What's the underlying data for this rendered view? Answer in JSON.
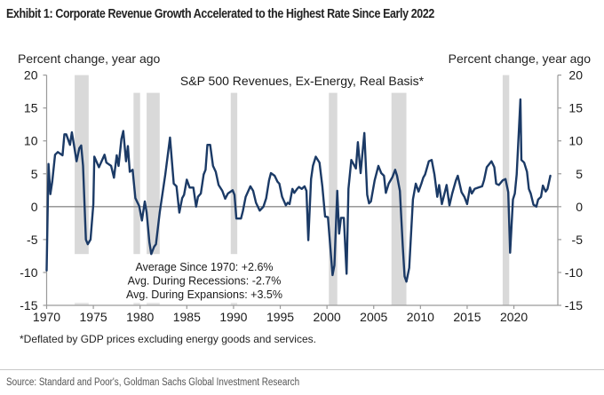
{
  "header": {
    "exhibit_title": "Exhibit 1: Corporate Revenue Growth Accelerated to the Highest Rate Since Early 2022"
  },
  "chart_data": {
    "type": "line",
    "title": "S&P 500 Revenues, Ex-Energy, Real Basis*",
    "ylabel_left": "Percent change, year ago",
    "ylabel_right": "Percent change, year ago",
    "xlabel": "",
    "xlim": [
      1970,
      2024.7
    ],
    "ylim": [
      -15,
      20
    ],
    "x_ticks": [
      1970,
      1975,
      1980,
      1985,
      1990,
      1995,
      2000,
      2005,
      2010,
      2015,
      2020
    ],
    "x_tick_labels": [
      "1970",
      "1975",
      "1980",
      "1985",
      "1990",
      "1995",
      "2000",
      "2005",
      "2010",
      "2015",
      "2020"
    ],
    "y_ticks": [
      20,
      15,
      10,
      5,
      0,
      -5,
      -10,
      -15
    ],
    "y_tick_labels": [
      "20",
      "15",
      "10",
      "5",
      "0",
      "-5",
      "-10",
      "-15"
    ],
    "grid": false,
    "zero_line": true,
    "line_color": "#1b3a66",
    "recession_color": "#d9d9d9",
    "recessions": [
      {
        "start": 1973.0,
        "end": 1974.5,
        "top": 20,
        "bottom": -7.2
      },
      {
        "start": 1979.3,
        "end": 1980.0,
        "top": 17.3,
        "bottom": -7.2
      },
      {
        "start": 1980.7,
        "end": 1982.1,
        "top": 17.3,
        "bottom": -7.2
      },
      {
        "start": 1989.7,
        "end": 1990.4,
        "top": 17.3,
        "bottom": -7.2
      },
      {
        "start": 2000.2,
        "end": 2001.1,
        "top": 17.3,
        "bottom": -15
      },
      {
        "start": 2006.9,
        "end": 2008.5,
        "top": 17.3,
        "bottom": -15
      },
      {
        "start": 2018.8,
        "end": 2019.5,
        "top": 20,
        "bottom": -15
      }
    ],
    "series": [
      {
        "name": "S&P 500 Revenues, Ex-Energy, Real Basis",
        "x": [
          1970.0,
          1970.2,
          1970.4,
          1970.6,
          1970.9,
          1971.2,
          1971.7,
          1971.9,
          1972.1,
          1972.5,
          1972.7,
          1972.9,
          1973.2,
          1973.5,
          1973.7,
          1973.9,
          1974.2,
          1974.4,
          1974.7,
          1975.0,
          1975.1,
          1975.6,
          1976.2,
          1976.4,
          1976.9,
          1977.2,
          1977.5,
          1977.7,
          1978.0,
          1978.2,
          1978.5,
          1978.7,
          1978.9,
          1979.2,
          1979.5,
          1979.9,
          1980.2,
          1980.5,
          1980.7,
          1981.0,
          1981.2,
          1981.5,
          1981.7,
          1982.1,
          1982.7,
          1983.2,
          1983.6,
          1983.9,
          1984.2,
          1984.5,
          1984.7,
          1985.0,
          1985.3,
          1985.7,
          1986.0,
          1986.2,
          1986.5,
          1986.8,
          1987.0,
          1987.2,
          1987.5,
          1987.8,
          1988.1,
          1988.4,
          1988.8,
          1989.1,
          1989.4,
          1989.9,
          1990.1,
          1990.3,
          1990.8,
          1991.0,
          1991.3,
          1991.8,
          1992.1,
          1992.4,
          1992.8,
          1993.2,
          1993.5,
          1993.8,
          1994.0,
          1994.4,
          1994.7,
          1994.9,
          1995.2,
          1995.6,
          1995.8,
          1996.0,
          1996.3,
          1996.5,
          1996.8,
          1997.0,
          1997.3,
          1997.6,
          1997.8,
          1998.0,
          1998.3,
          1998.5,
          1998.8,
          1999.2,
          1999.5,
          1999.8,
          2000.1,
          2000.6,
          2000.8,
          2001.1,
          2001.3,
          2001.5,
          2001.8,
          2002.1,
          2002.3,
          2002.6,
          2003.1,
          2003.3,
          2003.6,
          2004.0,
          2004.3,
          2004.5,
          2004.7,
          2005.1,
          2005.5,
          2005.8,
          2006.1,
          2006.3,
          2006.6,
          2007.0,
          2007.3,
          2007.5,
          2007.8,
          2008.1,
          2008.3,
          2008.5,
          2008.8,
          2009.2,
          2009.5,
          2009.8,
          2010.1,
          2010.3,
          2010.5,
          2010.9,
          2011.2,
          2011.5,
          2011.8,
          2012.0,
          2012.3,
          2012.8,
          2013.1,
          2013.4,
          2013.8,
          2014.0,
          2014.4,
          2014.7,
          2015.0,
          2015.3,
          2015.5,
          2015.8,
          2016.2,
          2016.6,
          2016.8,
          2017.1,
          2017.6,
          2017.9,
          2018.1,
          2018.4,
          2018.8,
          2019.1,
          2019.4,
          2019.6,
          2019.9,
          2020.1,
          2020.3,
          2020.7,
          2020.8,
          2021.1,
          2021.4,
          2021.6,
          2021.8,
          2022.1,
          2022.4,
          2022.6,
          2022.9,
          2023.1,
          2023.4,
          2023.6,
          2023.9
        ],
        "values": [
          -9.7,
          6.5,
          1.9,
          3.8,
          7.9,
          8.3,
          7.8,
          11.0,
          11.0,
          9.4,
          11.3,
          9.6,
          6.9,
          8.9,
          9.3,
          6.2,
          -5.0,
          -5.7,
          -5.0,
          0.4,
          7.6,
          6.0,
          7.9,
          6.7,
          6.2,
          4.4,
          7.8,
          6.2,
          10.3,
          11.5,
          6.9,
          9.2,
          5.3,
          5.6,
          1.3,
          0.1,
          -2.1,
          0.8,
          -0.9,
          -5.4,
          -7.2,
          -6.1,
          -5.7,
          -0.9,
          4.9,
          10.5,
          3.5,
          3.1,
          -0.9,
          1.3,
          1.8,
          4.1,
          2.9,
          2.9,
          0.0,
          1.5,
          2.0,
          4.9,
          5.6,
          9.4,
          9.4,
          6.2,
          5.3,
          3.3,
          2.4,
          1.2,
          2.0,
          2.5,
          1.8,
          -1.8,
          -1.8,
          -0.7,
          1.5,
          3.1,
          2.4,
          0.6,
          -0.6,
          0.0,
          1.3,
          4.0,
          5.1,
          4.7,
          3.8,
          3.5,
          1.5,
          0.2,
          0.6,
          0.4,
          2.7,
          2.1,
          2.7,
          3.0,
          2.7,
          3.1,
          2.4,
          -5.1,
          4.2,
          6.2,
          7.6,
          6.7,
          3.1,
          -1.5,
          -1.6,
          -10.4,
          -8.9,
          2.4,
          -4.1,
          -1.7,
          -1.7,
          -10.2,
          2.7,
          7.1,
          5.8,
          9.8,
          5.1,
          11.2,
          1.8,
          0.5,
          0.8,
          4.0,
          6.2,
          5.1,
          4.7,
          2.1,
          3.5,
          4.5,
          5.6,
          4.7,
          2.4,
          -5.9,
          -10.6,
          -11.4,
          -9.3,
          1.1,
          3.5,
          2.3,
          3.5,
          4.4,
          4.9,
          6.9,
          7.1,
          4.9,
          1.5,
          3.3,
          0.4,
          3.3,
          0.2,
          2.0,
          4.0,
          4.7,
          2.2,
          1.5,
          0.4,
          2.9,
          2.0,
          2.7,
          2.9,
          3.1,
          4.0,
          6.0,
          6.9,
          6.0,
          3.5,
          3.3,
          4.0,
          4.2,
          2.2,
          -7.0,
          1.1,
          2.0,
          4.9,
          16.3,
          7.1,
          6.7,
          5.3,
          2.7,
          2.0,
          0.3,
          0.0,
          1.1,
          1.5,
          3.2,
          2.3,
          2.7,
          4.7
        ]
      }
    ],
    "annotations": [
      "Average Since 1970: +2.6%",
      "Avg. During Recessions: -2.7%",
      "Avg. During Expansions: +3.5%"
    ],
    "summary_stats": {
      "average_since_1970": 2.6,
      "avg_during_recessions": -2.7,
      "avg_during_expansions": 3.5
    }
  },
  "footnote": "*Deflated by GDP prices excluding energy goods and services.",
  "source": "Source: Standard and Poor's, Goldman Sachs Global Investment Research"
}
